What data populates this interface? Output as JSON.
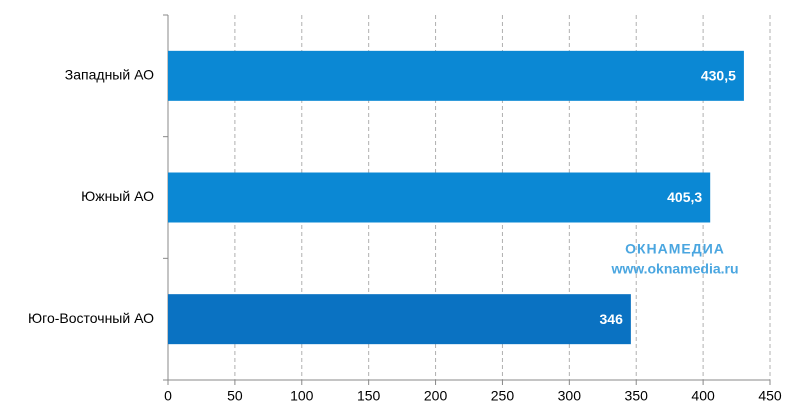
{
  "chart_data": {
    "type": "bar",
    "orientation": "horizontal",
    "categories": [
      "Западный АО",
      "Южный АО",
      "Юго-Восточный АО"
    ],
    "values": [
      430.5,
      405.3,
      346
    ],
    "value_labels": [
      "430,5",
      "405,3",
      "346"
    ],
    "colors": [
      "#0b88d4",
      "#0b88d4",
      "#0a72c2"
    ],
    "xlim": [
      0,
      450
    ],
    "xticks": [
      0,
      50,
      100,
      150,
      200,
      250,
      300,
      350,
      400,
      450
    ],
    "grid": true,
    "watermark": {
      "title": "ОКНАМЕДИА",
      "url": "www.oknamedia.ru"
    }
  }
}
